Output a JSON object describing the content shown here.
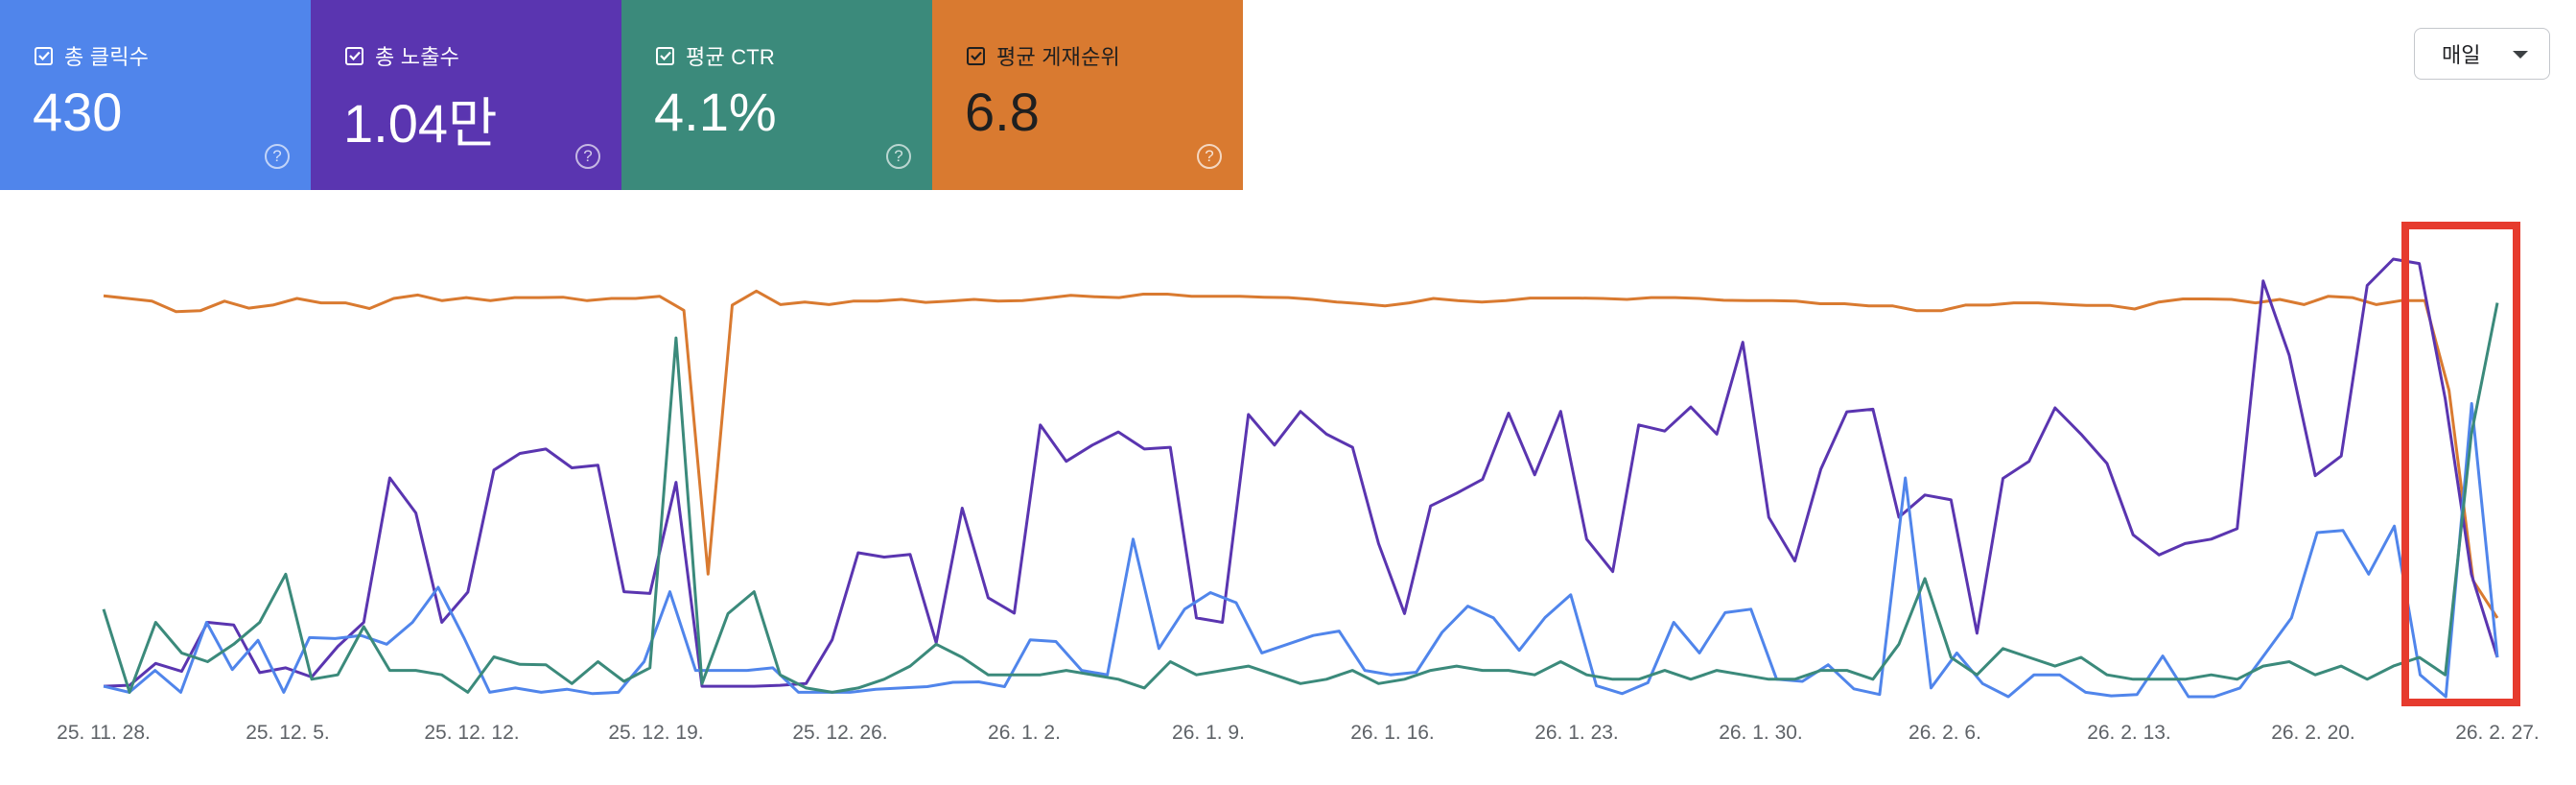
{
  "metrics": {
    "clicks": {
      "label": "총 클릭수",
      "value": "430",
      "color": "#5085eb",
      "checked": true
    },
    "impressions": {
      "label": "총 노출수",
      "value": "1.04만",
      "color": "#5a35b0",
      "checked": true
    },
    "ctr": {
      "label": "평균 CTR",
      "value": "4.1%",
      "color": "#3b8a7b",
      "checked": true
    },
    "position": {
      "label": "평균 게재순위",
      "value": "6.8",
      "color": "#d97a30",
      "checked": true
    }
  },
  "help_icon": "help-circle-icon",
  "granularity": {
    "selected": "매일",
    "icon": "caret-down-icon"
  },
  "chart_data": {
    "type": "line",
    "x_tick_labels": [
      "25. 11. 28.",
      "25. 12. 5.",
      "25. 12. 12.",
      "25. 12. 19.",
      "25. 12. 26.",
      "26. 1. 2.",
      "26. 1. 9.",
      "26. 1. 16.",
      "26. 1. 23.",
      "26. 1. 30.",
      "26. 2. 6.",
      "26. 2. 13.",
      "26. 2. 20.",
      "26. 2. 27."
    ],
    "normalization": "each series scaled independently to 0-1 of chart height (no y axis shown)",
    "grid": false,
    "highlight_box_color": "#e63b2e",
    "series": [
      {
        "id": "position",
        "color": "#d97a30",
        "values": [
          0.916,
          0.91,
          0.904,
          0.88,
          0.882,
          0.904,
          0.888,
          0.895,
          0.91,
          0.9,
          0.9,
          0.887,
          0.91,
          0.918,
          0.905,
          0.912,
          0.905,
          0.912,
          0.912,
          0.913,
          0.905,
          0.91,
          0.91,
          0.915,
          0.883,
          0.28,
          0.895,
          0.927,
          0.896,
          0.902,
          0.896,
          0.904,
          0.904,
          0.908,
          0.901,
          0.904,
          0.908,
          0.904,
          0.905,
          0.911,
          0.917,
          0.914,
          0.912,
          0.92,
          0.92,
          0.915,
          0.915,
          0.915,
          0.913,
          0.912,
          0.908,
          0.902,
          0.898,
          0.893,
          0.9,
          0.91,
          0.905,
          0.902,
          0.905,
          0.911,
          0.911,
          0.911,
          0.91,
          0.908,
          0.912,
          0.912,
          0.91,
          0.906,
          0.905,
          0.905,
          0.904,
          0.898,
          0.898,
          0.893,
          0.893,
          0.882,
          0.882,
          0.895,
          0.895,
          0.9,
          0.9,
          0.897,
          0.894,
          0.894,
          0.886,
          0.902,
          0.909,
          0.909,
          0.908,
          0.9,
          0.908,
          0.896,
          0.915,
          0.912,
          0.896,
          0.905,
          0.905,
          0.7,
          0.265,
          0.18
        ]
      },
      {
        "id": "impressions",
        "color": "#5a35b0",
        "values": [
          0.024,
          0.026,
          0.076,
          0.058,
          0.17,
          0.164,
          0.055,
          0.066,
          0.045,
          0.115,
          0.17,
          0.5,
          0.42,
          0.17,
          0.239,
          0.518,
          0.556,
          0.566,
          0.523,
          0.529,
          0.24,
          0.236,
          0.49,
          0.024,
          0.024,
          0.024,
          0.026,
          0.03,
          0.13,
          0.329,
          0.319,
          0.325,
          0.123,
          0.431,
          0.226,
          0.191,
          0.621,
          0.538,
          0.575,
          0.605,
          0.566,
          0.57,
          0.18,
          0.17,
          0.645,
          0.575,
          0.652,
          0.6,
          0.57,
          0.35,
          0.19,
          0.436,
          0.465,
          0.497,
          0.648,
          0.507,
          0.652,
          0.36,
          0.286,
          0.621,
          0.607,
          0.662,
          0.6,
          0.81,
          0.41,
          0.31,
          0.52,
          0.651,
          0.657,
          0.41,
          0.461,
          0.45,
          0.145,
          0.499,
          0.538,
          0.66,
          0.6,
          0.533,
          0.37,
          0.324,
          0.35,
          0.36,
          0.384,
          0.95,
          0.78,
          0.505,
          0.55,
          0.94,
          1.0,
          0.99,
          0.68,
          0.28,
          0.09
        ]
      },
      {
        "id": "clicks",
        "color": "#5085eb",
        "values": [
          0.024,
          0.01,
          0.06,
          0.01,
          0.17,
          0.062,
          0.129,
          0.01,
          0.135,
          0.133,
          0.14,
          0.12,
          0.17,
          0.25,
          0.135,
          0.01,
          0.02,
          0.01,
          0.017,
          0.007,
          0.01,
          0.08,
          0.24,
          0.06,
          0.06,
          0.06,
          0.066,
          0.01,
          0.01,
          0.01,
          0.017,
          0.02,
          0.023,
          0.033,
          0.034,
          0.023,
          0.13,
          0.126,
          0.06,
          0.05,
          0.36,
          0.11,
          0.2,
          0.238,
          0.215,
          0.1,
          0.12,
          0.14,
          0.15,
          0.06,
          0.05,
          0.056,
          0.147,
          0.207,
          0.18,
          0.106,
          0.181,
          0.233,
          0.025,
          0.007,
          0.032,
          0.17,
          0.1,
          0.192,
          0.2,
          0.04,
          0.035,
          0.073,
          0.018,
          0.005,
          0.5,
          0.02,
          0.1,
          0.03,
          0.0,
          0.05,
          0.05,
          0.01,
          0.002,
          0.005,
          0.093,
          0.0,
          0.0,
          0.02,
          0.1,
          0.18,
          0.375,
          0.38,
          0.28,
          0.39,
          0.05,
          0.0,
          0.67,
          0.09
        ]
      },
      {
        "id": "ctr",
        "color": "#3b8a7b",
        "values": [
          0.2,
          0.01,
          0.17,
          0.1,
          0.08,
          0.12,
          0.17,
          0.28,
          0.04,
          0.05,
          0.16,
          0.06,
          0.06,
          0.05,
          0.01,
          0.091,
          0.074,
          0.073,
          0.03,
          0.08,
          0.035,
          0.066,
          0.82,
          0.03,
          0.19,
          0.24,
          0.05,
          0.02,
          0.01,
          0.02,
          0.04,
          0.07,
          0.12,
          0.09,
          0.05,
          0.05,
          0.05,
          0.06,
          0.05,
          0.04,
          0.02,
          0.08,
          0.05,
          0.06,
          0.07,
          0.05,
          0.03,
          0.04,
          0.06,
          0.03,
          0.04,
          0.06,
          0.07,
          0.06,
          0.06,
          0.05,
          0.08,
          0.05,
          0.04,
          0.04,
          0.06,
          0.04,
          0.06,
          0.05,
          0.04,
          0.04,
          0.06,
          0.06,
          0.04,
          0.12,
          0.27,
          0.09,
          0.05,
          0.11,
          0.09,
          0.07,
          0.09,
          0.05,
          0.04,
          0.04,
          0.04,
          0.05,
          0.04,
          0.07,
          0.08,
          0.05,
          0.07,
          0.04,
          0.07,
          0.09,
          0.05,
          0.6,
          0.9
        ]
      }
    ]
  }
}
